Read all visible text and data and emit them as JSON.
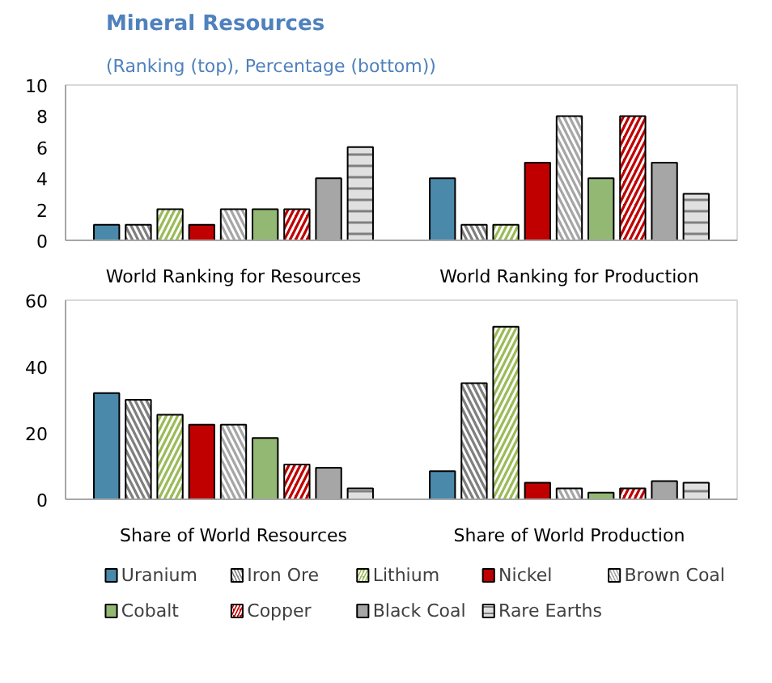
{
  "chart_data": [
    {
      "type": "bar",
      "title": "Mineral Resources",
      "subtitle": "(Ranking (top), Percentage (bottom))",
      "categories": [
        "World Ranking for Resources",
        "World Ranking for Production"
      ],
      "ylim": [
        0,
        10
      ],
      "yticks": [
        0,
        2,
        4,
        6,
        8,
        10
      ],
      "legend": false,
      "series": [
        {
          "color": "#4a89aa",
          "values": [
            1,
            4
          ]
        },
        {
          "color": "#7f7f7f",
          "values": [
            1,
            1
          ]
        },
        {
          "color": "#9bbb59",
          "values": [
            2,
            1
          ]
        },
        {
          "color": "#c00000",
          "values": [
            1,
            5
          ]
        },
        {
          "color": "#a6a6a6",
          "values": [
            2,
            8
          ]
        },
        {
          "color": "#93b874",
          "values": [
            2,
            4
          ]
        },
        {
          "color": "#c00000",
          "values": [
            2,
            8
          ]
        },
        {
          "color": "#a6a6a6",
          "values": [
            4,
            5
          ]
        },
        {
          "color": "#e0e0e0",
          "values": [
            6,
            3
          ]
        }
      ]
    },
    {
      "type": "bar",
      "categories": [
        "Share of World Resources",
        "Share of World Production"
      ],
      "ylim": [
        0,
        60
      ],
      "yticks": [
        0,
        20,
        40,
        60
      ],
      "legend": "bottom",
      "series": [
        {
          "name": "Uranium",
          "color": "#4a89aa",
          "values": [
            32,
            8.5
          ]
        },
        {
          "name": "Iron Ore",
          "color": "#7f7f7f",
          "values": [
            30,
            35
          ]
        },
        {
          "name": "Lithium",
          "color": "#9bbb59",
          "values": [
            25.5,
            52
          ]
        },
        {
          "name": "Nickel",
          "color": "#c00000",
          "values": [
            22.5,
            5
          ]
        },
        {
          "name": "Brown Coal",
          "color": "#a6a6a6",
          "values": [
            22.5,
            3.3
          ]
        },
        {
          "name": "Cobalt",
          "color": "#93b874",
          "values": [
            18.5,
            2
          ]
        },
        {
          "name": "Copper",
          "color": "#c00000",
          "values": [
            10.5,
            3.3
          ]
        },
        {
          "name": "Black Coal",
          "color": "#a6a6a6",
          "values": [
            9.5,
            5.5
          ]
        },
        {
          "name": "Rare Earths",
          "color": "#e0e0e0",
          "values": [
            3.3,
            5
          ]
        }
      ]
    }
  ]
}
